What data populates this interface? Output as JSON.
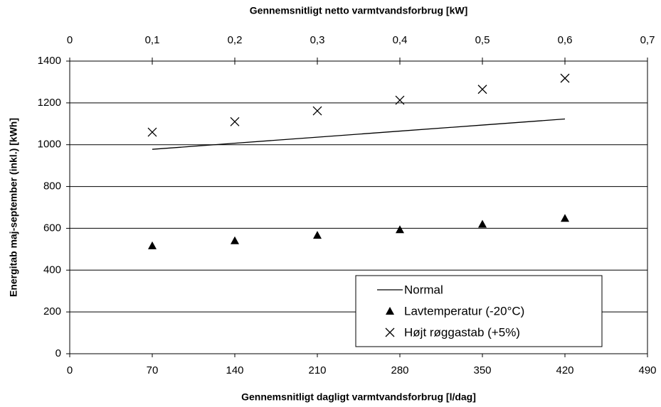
{
  "chart_data": {
    "type": "scatter",
    "xlabel": "Gennemsnitligt dagligt varmtvandsforbrug  [l/dag]",
    "x2label": "Gennemsnitligt netto varmtvandsforbrug  [kW]",
    "ylabel": "Energitab maj-september (inkl.) [kWh]",
    "x": [
      70,
      140,
      210,
      280,
      350,
      420
    ],
    "series": [
      {
        "name": "Normal",
        "color": "#000000",
        "marker": "line",
        "values": [
          978,
          1007,
          1036,
          1065,
          1094,
          1123
        ]
      },
      {
        "name": "Lavtemperatur (-20°C)",
        "color": "#000000",
        "marker": "triangle",
        "values": [
          517,
          541,
          567,
          594,
          620,
          648
        ]
      },
      {
        "name": "Højt røggastab (+5%)",
        "color": "#000000",
        "marker": "x",
        "values": [
          1060,
          1110,
          1162,
          1213,
          1265,
          1318
        ]
      }
    ],
    "xlim": [
      0,
      490
    ],
    "xticks": [
      0,
      70,
      140,
      210,
      280,
      350,
      420,
      490
    ],
    "x2lim": [
      0,
      0.7
    ],
    "x2ticks": [
      0,
      {
        "value": 0.1,
        "label": "0,1"
      },
      {
        "value": 0.2,
        "label": "0,2"
      },
      {
        "value": 0.3,
        "label": "0,3"
      },
      {
        "value": 0.4,
        "label": "0,4"
      },
      {
        "value": 0.5,
        "label": "0,5"
      },
      {
        "value": 0.6,
        "label": "0,6"
      },
      {
        "value": 0.7,
        "label": "0,7"
      }
    ],
    "ylim": [
      0,
      1400
    ],
    "yticks": [
      0,
      200,
      400,
      600,
      800,
      1000,
      1200,
      1400
    ],
    "grid": true,
    "legend": "lower right"
  }
}
